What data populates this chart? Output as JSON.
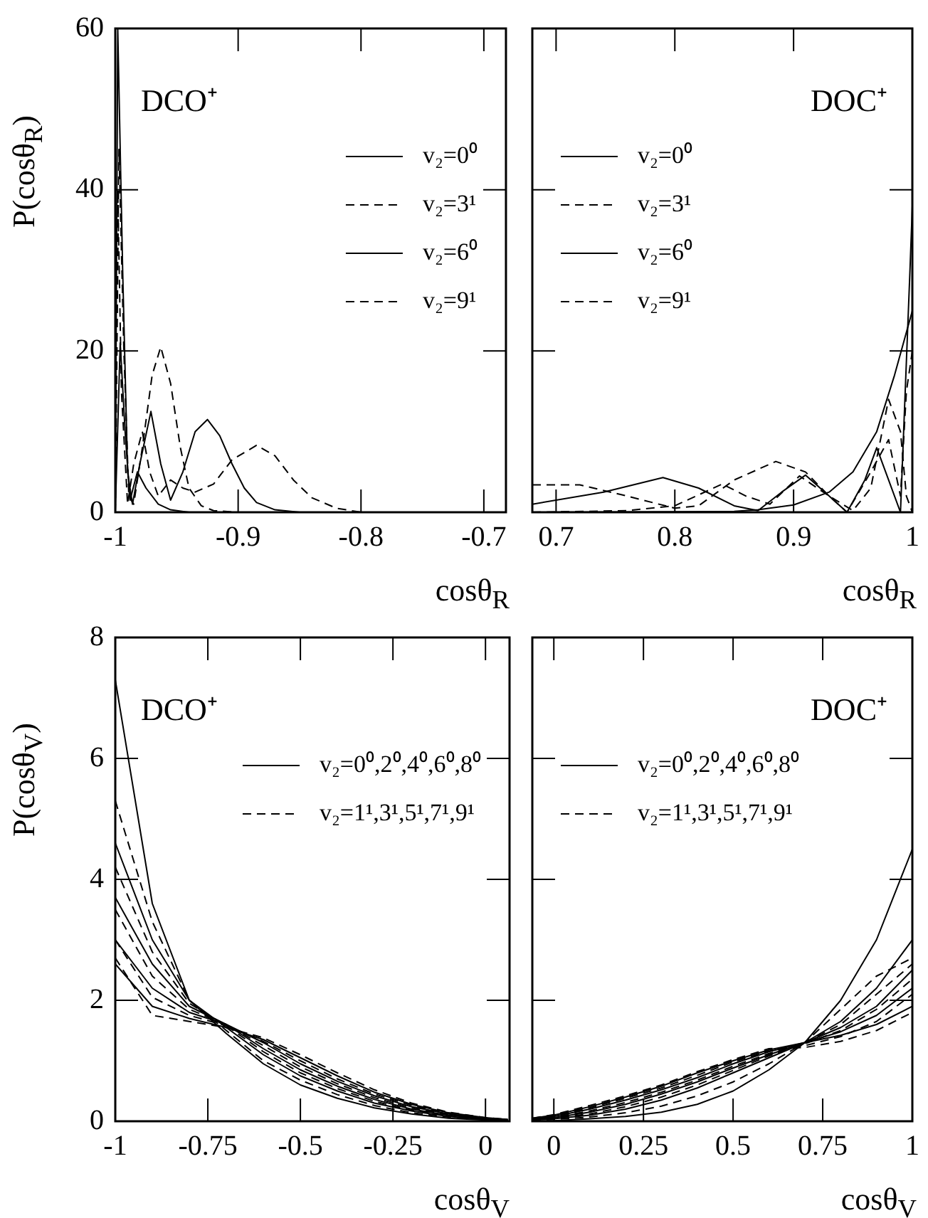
{
  "chart_data": [
    {
      "type": "line",
      "annotations": [
        "DCO⁺"
      ],
      "xlabel": "cosθ$_{R}$",
      "ylabel": "P(cosθ$_{R}$)",
      "xlim": [
        -1,
        -0.682
      ],
      "xticks": [
        -1,
        -0.9,
        -0.8,
        -0.7
      ],
      "ylim": [
        0,
        60
      ],
      "yticks": [
        0,
        20,
        40,
        60
      ],
      "legend": "top right",
      "marker": "none",
      "series": [
        {
          "name": "v₂=0⁰",
          "color": "#000000",
          "line_style": "solid",
          "x": [
            -1,
            -0.998,
            -0.994,
            -0.99,
            -0.986,
            -0.98,
            -0.971,
            -0.963,
            -0.955,
            -0.945,
            -0.935,
            -0.925,
            -0.915,
            -0.905,
            -0.895,
            -0.885,
            -0.87,
            -0.85,
            -0.8
          ],
          "values": [
            0,
            60,
            30,
            5,
            1,
            6,
            12.5,
            6,
            1.5,
            5,
            10,
            11.5,
            9.5,
            6,
            3,
            1.2,
            0.3,
            0,
            0
          ]
        },
        {
          "name": "v₂=3¹",
          "color": "#000000",
          "line_style": "dashed",
          "x": [
            -1,
            -0.997,
            -0.993,
            -0.989,
            -0.985,
            -0.978,
            -0.97,
            -0.963,
            -0.955,
            -0.947,
            -0.94,
            -0.93,
            -0.92,
            -0.9,
            -0.85
          ],
          "values": [
            0,
            45,
            20,
            2,
            1,
            8,
            17,
            20.5,
            16,
            8,
            3,
            0.8,
            0.2,
            0,
            0
          ]
        },
        {
          "name": "v₂=6⁰",
          "color": "#000000",
          "line_style": "solid",
          "x": [
            -1,
            -0.996,
            -0.992,
            -0.988,
            -0.982,
            -0.975,
            -0.965,
            -0.955,
            -0.94,
            -0.9
          ],
          "values": [
            0,
            21,
            10,
            1.5,
            5,
            3,
            1,
            0.3,
            0,
            0
          ]
        },
        {
          "name": "v₂=9¹",
          "color": "#000000",
          "line_style": "dashed",
          "x": [
            -1,
            -0.998,
            -0.995,
            -0.99,
            -0.985,
            -0.978,
            -0.972,
            -0.965,
            -0.955,
            -0.945,
            -0.935,
            -0.92,
            -0.905,
            -0.885,
            -0.87,
            -0.855,
            -0.84,
            -0.82,
            -0.8
          ],
          "values": [
            0,
            40,
            15,
            1,
            6,
            10,
            5,
            2,
            4,
            3,
            2.5,
            3.5,
            6.5,
            8.3,
            7,
            4,
            1.8,
            0.5,
            0
          ]
        }
      ]
    },
    {
      "type": "line",
      "annotations": [
        "DOC⁺"
      ],
      "xlabel": "cosθ$_{R}$",
      "xlim": [
        0.68,
        1
      ],
      "xticks": [
        0.7,
        0.8,
        0.9,
        1
      ],
      "ylim": [
        0,
        60
      ],
      "yticks": [
        0,
        20,
        40,
        60
      ],
      "tick_labels": "x",
      "legend": "top left",
      "marker": "none",
      "series": [
        {
          "name": "v₂=0⁰",
          "color": "#000000",
          "line_style": "solid",
          "x": [
            0.68,
            0.85,
            0.87,
            0.9,
            0.93,
            0.95,
            0.97,
            0.985,
            1
          ],
          "values": [
            0,
            0.1,
            0.3,
            0.9,
            2.5,
            5,
            10,
            17,
            25
          ]
        },
        {
          "name": "v₂=3¹",
          "color": "#000000",
          "line_style": "dashed",
          "x": [
            0.68,
            0.72,
            0.76,
            0.8,
            0.82,
            0.85,
            0.885,
            0.91,
            0.93,
            0.95,
            0.965,
            0.98,
            0.99,
            0.995,
            1
          ],
          "values": [
            3.4,
            3.4,
            2,
            0.5,
            0.8,
            4,
            6.3,
            5,
            2,
            0.2,
            3,
            14,
            10,
            2,
            0
          ]
        },
        {
          "name": "v₂=6⁰",
          "color": "#000000",
          "line_style": "solid",
          "x": [
            0.68,
            0.74,
            0.79,
            0.82,
            0.85,
            0.87,
            0.89,
            0.91,
            0.93,
            0.945,
            0.96,
            0.97,
            0.98,
            0.99,
            0.998,
            1
          ],
          "values": [
            1,
            2.5,
            4.3,
            3,
            0.8,
            0.2,
            2.5,
            4.6,
            2,
            0,
            4,
            8,
            4,
            0,
            30,
            38
          ]
        },
        {
          "name": "v₂=9¹",
          "color": "#000000",
          "line_style": "dashed",
          "x": [
            0.68,
            0.76,
            0.8,
            0.84,
            0.86,
            0.88,
            0.905,
            0.93,
            0.945,
            0.965,
            0.98,
            0.99,
            0.995,
            1
          ],
          "values": [
            0,
            0.2,
            0.8,
            3.5,
            2,
            1,
            4.5,
            2,
            0,
            5,
            9,
            2,
            15,
            20
          ]
        }
      ]
    },
    {
      "type": "line",
      "annotations": [
        "DCO⁺"
      ],
      "xlabel": "cosθ$_{V}$",
      "ylabel": "P(cosθ$_{V}$)",
      "xlim": [
        -1,
        0.065
      ],
      "xticks": [
        -1,
        -0.75,
        -0.5,
        -0.25,
        0
      ],
      "ylim": [
        0,
        8
      ],
      "yticks": [
        0,
        2,
        4,
        6,
        8
      ],
      "legend": "top right",
      "marker": "none",
      "x": [
        -1,
        -0.9,
        -0.8,
        -0.7,
        -0.6,
        -0.5,
        -0.4,
        -0.3,
        -0.2,
        -0.1,
        0,
        0.06
      ],
      "series": [
        {
          "name": "v₂=0⁰,2⁰,4⁰,6⁰,8⁰",
          "color": "#000000",
          "line_style": "solid",
          "values": [
            7.3,
            3.6,
            2.0,
            1.45,
            0.95,
            0.6,
            0.38,
            0.22,
            0.12,
            0.05,
            0.02,
            0.01
          ]
        },
        {
          "color": "#000000",
          "line_style": "solid",
          "values": [
            4.6,
            3.0,
            2.0,
            1.55,
            1.1,
            0.75,
            0.5,
            0.3,
            0.17,
            0.08,
            0.03,
            0.02
          ]
        },
        {
          "color": "#000000",
          "line_style": "solid",
          "values": [
            3.7,
            2.6,
            1.9,
            1.6,
            1.2,
            0.85,
            0.58,
            0.36,
            0.2,
            0.1,
            0.04,
            0.02
          ]
        },
        {
          "color": "#000000",
          "line_style": "solid",
          "values": [
            3.0,
            2.2,
            1.8,
            1.6,
            1.3,
            0.95,
            0.66,
            0.42,
            0.24,
            0.12,
            0.05,
            0.02
          ]
        },
        {
          "color": "#000000",
          "line_style": "solid",
          "values": [
            2.6,
            1.9,
            1.7,
            1.55,
            1.35,
            1.05,
            0.75,
            0.48,
            0.28,
            0.14,
            0.06,
            0.03
          ]
        },
        {
          "name": "v₂=1¹,3¹,5¹,7¹,9¹",
          "color": "#000000",
          "line_style": "dashed",
          "values": [
            5.3,
            3.3,
            2.0,
            1.5,
            1.0,
            0.68,
            0.44,
            0.26,
            0.14,
            0.07,
            0.03,
            0.01
          ]
        },
        {
          "color": "#000000",
          "line_style": "dashed",
          "values": [
            4.2,
            2.8,
            1.95,
            1.58,
            1.15,
            0.8,
            0.54,
            0.33,
            0.18,
            0.09,
            0.04,
            0.02
          ]
        },
        {
          "color": "#000000",
          "line_style": "dashed",
          "values": [
            3.5,
            2.4,
            1.85,
            1.6,
            1.25,
            0.9,
            0.62,
            0.39,
            0.22,
            0.11,
            0.05,
            0.02
          ]
        },
        {
          "color": "#000000",
          "line_style": "dashed",
          "values": [
            3.0,
            2.05,
            1.75,
            1.58,
            1.32,
            1.0,
            0.7,
            0.45,
            0.26,
            0.13,
            0.05,
            0.03
          ]
        },
        {
          "color": "#000000",
          "line_style": "dashed",
          "values": [
            2.7,
            1.75,
            1.65,
            1.55,
            1.38,
            1.1,
            0.8,
            0.52,
            0.3,
            0.15,
            0.06,
            0.03
          ]
        }
      ]
    },
    {
      "type": "line",
      "annotations": [
        "DOC⁺"
      ],
      "xlabel": "cosθ$_{V}$",
      "xlim": [
        -0.06,
        1
      ],
      "xticks": [
        0,
        0.25,
        0.5,
        0.75,
        1
      ],
      "ylim": [
        0,
        8
      ],
      "yticks": [
        0,
        2,
        4,
        6,
        8
      ],
      "tick_labels": "x",
      "legend": "top left",
      "marker": "none",
      "x": [
        -0.06,
        0,
        0.1,
        0.2,
        0.3,
        0.4,
        0.5,
        0.6,
        0.7,
        0.8,
        0.9,
        1
      ],
      "series": [
        {
          "name": "v₂=0⁰,2⁰,4⁰,6⁰,8⁰",
          "color": "#000000",
          "line_style": "solid",
          "values": [
            0,
            0.01,
            0.04,
            0.08,
            0.15,
            0.28,
            0.5,
            0.85,
            1.3,
            2.0,
            3.0,
            4.5
          ]
        },
        {
          "color": "#000000",
          "line_style": "solid",
          "values": [
            0.02,
            0.04,
            0.1,
            0.2,
            0.35,
            0.55,
            0.8,
            1.05,
            1.3,
            1.65,
            2.2,
            3.0
          ]
        },
        {
          "color": "#000000",
          "line_style": "solid",
          "values": [
            0.03,
            0.06,
            0.15,
            0.28,
            0.45,
            0.65,
            0.88,
            1.1,
            1.3,
            1.55,
            1.9,
            2.5
          ]
        },
        {
          "color": "#000000",
          "line_style": "solid",
          "values": [
            0.04,
            0.08,
            0.2,
            0.35,
            0.52,
            0.72,
            0.95,
            1.15,
            1.3,
            1.48,
            1.75,
            2.2
          ]
        },
        {
          "color": "#000000",
          "line_style": "solid",
          "values": [
            0.05,
            0.1,
            0.24,
            0.4,
            0.58,
            0.8,
            1.0,
            1.18,
            1.3,
            1.42,
            1.6,
            1.9
          ]
        },
        {
          "name": "v₂=1¹,3¹,5¹,7¹,9¹",
          "color": "#000000",
          "line_style": "dashed",
          "values": [
            0.01,
            0.03,
            0.07,
            0.14,
            0.25,
            0.42,
            0.65,
            0.95,
            1.3,
            1.85,
            2.4,
            2.7
          ]
        },
        {
          "color": "#000000",
          "line_style": "dashed",
          "values": [
            0.02,
            0.05,
            0.12,
            0.24,
            0.4,
            0.6,
            0.84,
            1.08,
            1.3,
            1.6,
            2.1,
            2.6
          ]
        },
        {
          "color": "#000000",
          "line_style": "dashed",
          "values": [
            0.03,
            0.07,
            0.17,
            0.31,
            0.48,
            0.68,
            0.91,
            1.12,
            1.28,
            1.5,
            1.85,
            2.35
          ]
        },
        {
          "color": "#000000",
          "line_style": "dashed",
          "values": [
            0.04,
            0.09,
            0.22,
            0.38,
            0.55,
            0.76,
            0.98,
            1.16,
            1.25,
            1.4,
            1.65,
            2.1
          ]
        },
        {
          "color": "#000000",
          "line_style": "dashed",
          "values": [
            0.05,
            0.11,
            0.26,
            0.42,
            0.6,
            0.82,
            1.02,
            1.2,
            1.22,
            1.32,
            1.5,
            1.8
          ]
        }
      ]
    }
  ]
}
